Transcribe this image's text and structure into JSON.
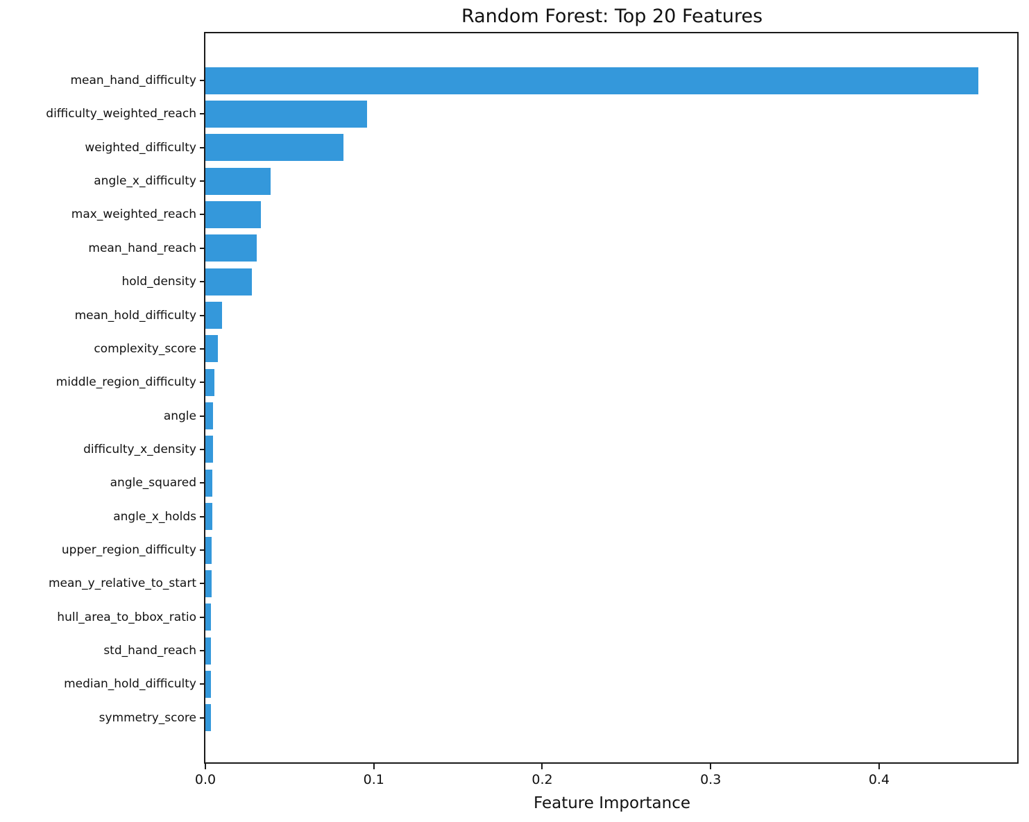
{
  "chart_data": {
    "type": "bar",
    "orientation": "horizontal",
    "title": "Random Forest: Top 20 Features",
    "xlabel": "Feature Importance",
    "ylabel": "",
    "categories": [
      "mean_hand_difficulty",
      "difficulty_weighted_reach",
      "weighted_difficulty",
      "angle_x_difficulty",
      "max_weighted_reach",
      "mean_hand_reach",
      "hold_density",
      "mean_hold_difficulty",
      "complexity_score",
      "middle_region_difficulty",
      "angle",
      "difficulty_x_density",
      "angle_squared",
      "angle_x_holds",
      "upper_region_difficulty",
      "mean_y_relative_to_start",
      "hull_area_to_bbox_ratio",
      "std_hand_reach",
      "median_hold_difficulty",
      "symmetry_score"
    ],
    "values": [
      0.459,
      0.096,
      0.082,
      0.0386,
      0.0329,
      0.0304,
      0.0276,
      0.0098,
      0.0074,
      0.0055,
      0.0046,
      0.0045,
      0.0042,
      0.0041,
      0.0038,
      0.0037,
      0.0035,
      0.0034,
      0.0033,
      0.0031
    ],
    "xlim": [
      0,
      0.482
    ],
    "xticks": [
      {
        "value": 0.0,
        "label": "0.0"
      },
      {
        "value": 0.1,
        "label": "0.1"
      },
      {
        "value": 0.2,
        "label": "0.2"
      },
      {
        "value": 0.3,
        "label": "0.3"
      },
      {
        "value": 0.4,
        "label": "0.4"
      },
      {
        "value": 0.5,
        "label": ""
      }
    ],
    "grid": false,
    "legend": null,
    "bar_color": "#3498db",
    "axis_color": "#1a1a1a",
    "background_color": "#ffffff"
  }
}
